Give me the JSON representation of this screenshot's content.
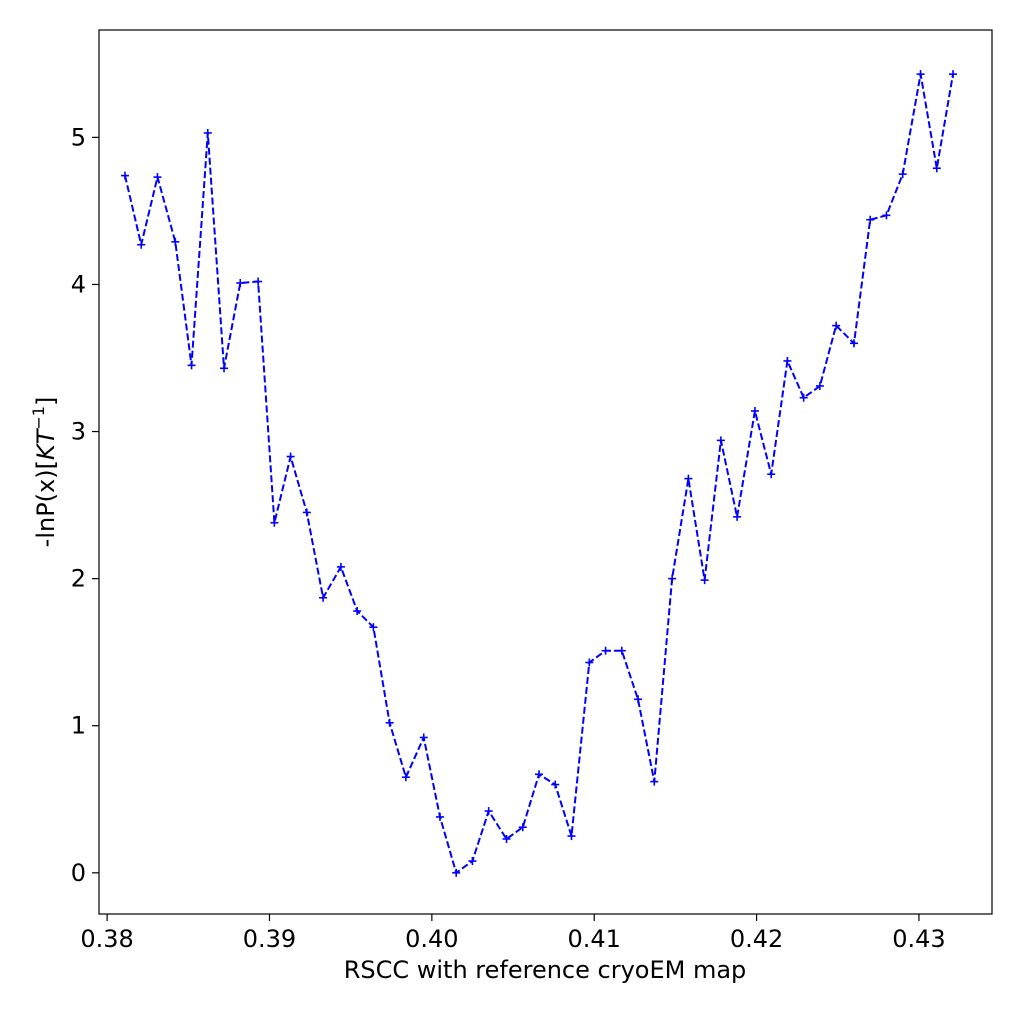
{
  "chart_data": {
    "type": "line",
    "title": "",
    "xlabel": "RSCC with reference cryoEM map",
    "ylabel_parts": [
      "-lnP(x)[",
      "KT",
      "−1",
      "]"
    ],
    "xlim": [
      0.3795,
      0.4345
    ],
    "ylim": [
      -0.28,
      5.73
    ],
    "xticks": [
      {
        "value": 0.38,
        "label": "0.38"
      },
      {
        "value": 0.39,
        "label": "0.39"
      },
      {
        "value": 0.4,
        "label": "0.40"
      },
      {
        "value": 0.41,
        "label": "0.41"
      },
      {
        "value": 0.42,
        "label": "0.42"
      },
      {
        "value": 0.43,
        "label": "0.43"
      }
    ],
    "yticks": [
      {
        "value": 0,
        "label": "0"
      },
      {
        "value": 1,
        "label": "1"
      },
      {
        "value": 2,
        "label": "2"
      },
      {
        "value": 3,
        "label": "3"
      },
      {
        "value": 4,
        "label": "4"
      },
      {
        "value": 5,
        "label": "5"
      }
    ],
    "grid": false,
    "series": [
      {
        "color": "#0000ff",
        "line_style": "dashed",
        "marker": "plus",
        "x": [
          0.3811,
          0.3821,
          0.3831,
          0.3842,
          0.3852,
          0.3862,
          0.3872,
          0.3882,
          0.3893,
          0.3903,
          0.3913,
          0.3923,
          0.3933,
          0.3944,
          0.3954,
          0.3964,
          0.3974,
          0.3984,
          0.3995,
          0.4005,
          0.4015,
          0.4025,
          0.4035,
          0.4046,
          0.4056,
          0.4066,
          0.4076,
          0.4086,
          0.4097,
          0.4107,
          0.4117,
          0.4127,
          0.4137,
          0.4148,
          0.4158,
          0.4168,
          0.4178,
          0.4188,
          0.4199,
          0.4209,
          0.4219,
          0.4229,
          0.4239,
          0.4249,
          0.426,
          0.427,
          0.428,
          0.429,
          0.4301,
          0.4311,
          0.4321
        ],
        "y": [
          4.74,
          4.27,
          4.73,
          4.29,
          3.45,
          5.03,
          3.43,
          4.01,
          4.02,
          2.38,
          2.83,
          2.45,
          1.87,
          2.08,
          1.78,
          1.67,
          1.02,
          0.65,
          0.92,
          0.38,
          0.0,
          0.08,
          0.42,
          0.23,
          0.31,
          0.67,
          0.6,
          0.25,
          1.43,
          1.51,
          1.51,
          1.18,
          0.62,
          2.0,
          2.68,
          1.99,
          2.94,
          2.42,
          3.14,
          2.71,
          3.48,
          3.23,
          3.31,
          3.72,
          3.6,
          4.44,
          4.47,
          4.75,
          5.43,
          4.79,
          5.43
        ]
      }
    ]
  }
}
